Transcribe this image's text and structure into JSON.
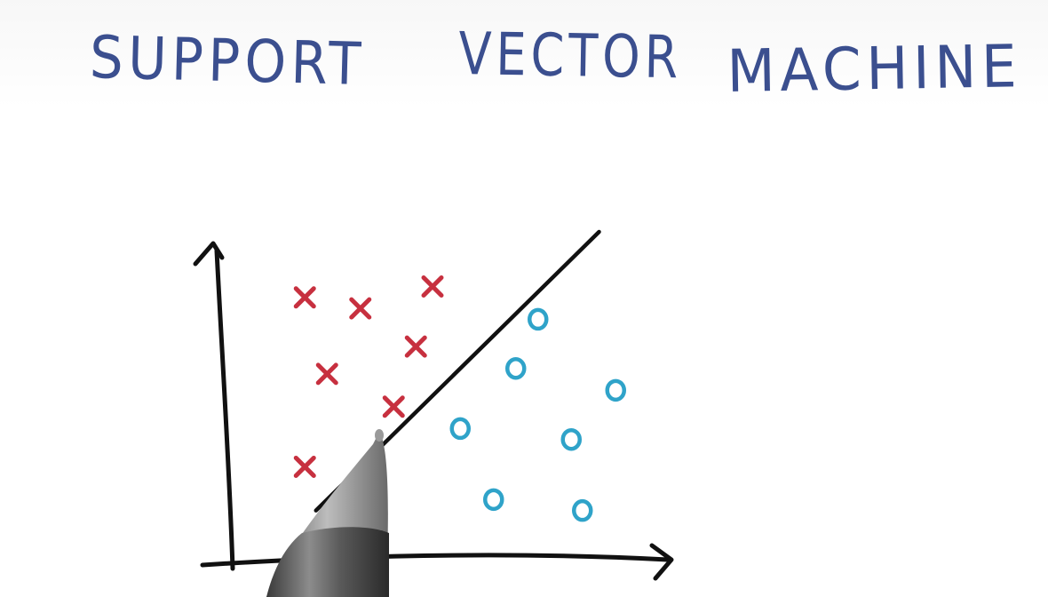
{
  "title": {
    "words": [
      "SUPPORT",
      "VECTOR",
      "MACHINE"
    ]
  },
  "diagram": {
    "class_x_label": "x",
    "class_o_label": "o",
    "colors": {
      "title": "#3b4f8f",
      "class_x": "#c7303f",
      "class_o": "#2fa3c9",
      "ink": "#111111"
    },
    "x_points": [
      [
        1.3,
        4.8
      ],
      [
        2.3,
        4.6
      ],
      [
        3.6,
        5.0
      ],
      [
        3.3,
        3.9
      ],
      [
        1.7,
        3.4
      ],
      [
        2.9,
        2.8
      ],
      [
        1.3,
        1.7
      ]
    ],
    "o_points": [
      [
        5.5,
        4.4
      ],
      [
        5.1,
        3.5
      ],
      [
        6.9,
        3.1
      ],
      [
        4.1,
        2.4
      ],
      [
        6.1,
        2.2
      ],
      [
        4.7,
        1.1
      ],
      [
        6.3,
        0.9
      ]
    ],
    "decision_line": {
      "from": [
        1.5,
        0.9
      ],
      "to": [
        6.6,
        6.0
      ]
    }
  }
}
